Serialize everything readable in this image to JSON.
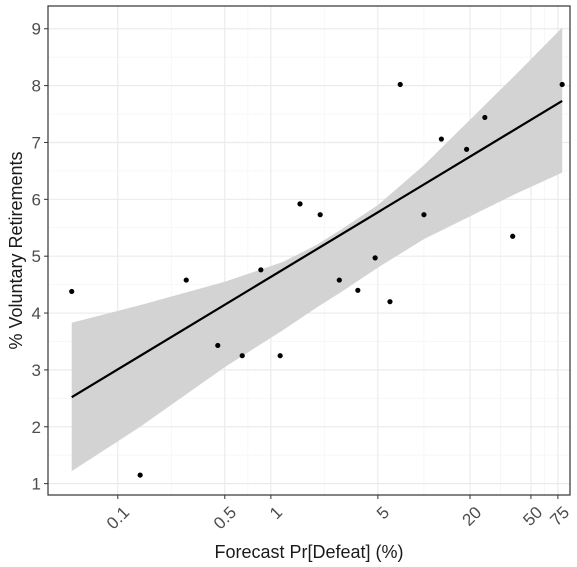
{
  "chart_data": {
    "type": "scatter",
    "xlabel": "Forecast Pr[Defeat] (%)",
    "ylabel": "% Voluntary Retirements",
    "x_scale": "log10",
    "x_ticks": [
      0.1,
      0.5,
      1,
      5,
      20,
      50,
      75
    ],
    "x_tick_labels": [
      "0.1",
      "0.5",
      "1",
      "5",
      "20",
      "50",
      "75"
    ],
    "xlim": [
      0.035,
      90
    ],
    "y_ticks": [
      1,
      2,
      3,
      4,
      5,
      6,
      7,
      8,
      9
    ],
    "y_tick_labels": [
      "1",
      "2",
      "3",
      "4",
      "5",
      "6",
      "7",
      "8",
      "9"
    ],
    "ylim": [
      0.8,
      9.4
    ],
    "grid": true,
    "legend": "none",
    "points": [
      {
        "x": 0.05,
        "y": 4.38
      },
      {
        "x": 0.14,
        "y": 1.15
      },
      {
        "x": 0.28,
        "y": 4.58
      },
      {
        "x": 0.45,
        "y": 3.43
      },
      {
        "x": 0.65,
        "y": 3.25
      },
      {
        "x": 0.86,
        "y": 4.76
      },
      {
        "x": 1.15,
        "y": 3.25
      },
      {
        "x": 1.55,
        "y": 5.92
      },
      {
        "x": 2.1,
        "y": 5.73
      },
      {
        "x": 2.8,
        "y": 4.58
      },
      {
        "x": 3.7,
        "y": 4.4
      },
      {
        "x": 4.8,
        "y": 4.97
      },
      {
        "x": 6.0,
        "y": 4.2
      },
      {
        "x": 7.0,
        "y": 8.02
      },
      {
        "x": 10.0,
        "y": 5.73
      },
      {
        "x": 13.0,
        "y": 7.06
      },
      {
        "x": 19.0,
        "y": 6.88
      },
      {
        "x": 25.0,
        "y": 7.44
      },
      {
        "x": 38.0,
        "y": 5.35
      },
      {
        "x": 80.0,
        "y": 8.02
      }
    ],
    "fit_line": {
      "x": [
        0.05,
        80
      ],
      "y": [
        2.52,
        7.73
      ]
    },
    "confidence_band": {
      "x": [
        0.05,
        0.14,
        0.5,
        1.2,
        2.0,
        3.0,
        5.0,
        10.0,
        20.0,
        40.0,
        80.0
      ],
      "upper": [
        3.83,
        4.14,
        4.55,
        4.9,
        5.2,
        5.5,
        5.9,
        6.6,
        7.4,
        8.2,
        9.02
      ],
      "lower": [
        1.22,
        2.0,
        3.05,
        3.7,
        4.1,
        4.4,
        4.8,
        5.3,
        5.7,
        6.1,
        6.47
      ]
    },
    "colors": {
      "points": "#000000",
      "fit_line": "#000000",
      "band": "#d3d3d3",
      "grid_major": "#ebebeb",
      "grid_minor": "#f5f5f5",
      "panel_border": "#333333"
    }
  }
}
